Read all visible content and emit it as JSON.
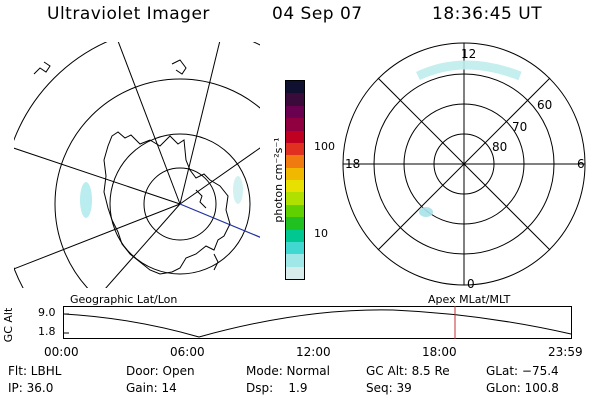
{
  "header": {
    "title": "Ultraviolet Imager",
    "date": "04 Sep 07",
    "time": "18:36:45 UT"
  },
  "colorbar": {
    "unit_label": "photon cm⁻²s⁻¹",
    "ticks": [
      "100",
      "10"
    ],
    "colors": [
      "#101030",
      "#3a0a3a",
      "#6a0050",
      "#900040",
      "#c00020",
      "#e03020",
      "#f07a10",
      "#f0b800",
      "#e8e000",
      "#b0e000",
      "#60d000",
      "#20c020",
      "#00c890",
      "#40d8d0",
      "#a0e8e8",
      "#d8ecec"
    ]
  },
  "geo_map": {
    "label": "Geographic Lat/Lon"
  },
  "polar_map": {
    "label": "Apex MLat/MLT",
    "mlt_labels": {
      "top": "12",
      "left": "18",
      "right": "6",
      "bottom": "0"
    },
    "lat_labels": [
      "60",
      "70",
      "80"
    ]
  },
  "timeline": {
    "axis_label": "GC Alt",
    "y_ticks": [
      "9.0",
      "1.8"
    ],
    "x_ticks": [
      "00:00",
      "06:00",
      "12:00",
      "18:00",
      "23:59"
    ],
    "marker_color": "#c03030"
  },
  "status": {
    "filter": "Flt: LBHL",
    "ip": "IP: 36.0",
    "door": "Door: Open",
    "gain": "Gain: 14",
    "mode": "Mode: Normal",
    "dsp": "Dsp:    1.9",
    "gc_alt": "GC Alt: 8.5 Re",
    "seq": "Seq: 39",
    "glat": "GLat: −75.4",
    "glon": "GLon: 100.8"
  }
}
